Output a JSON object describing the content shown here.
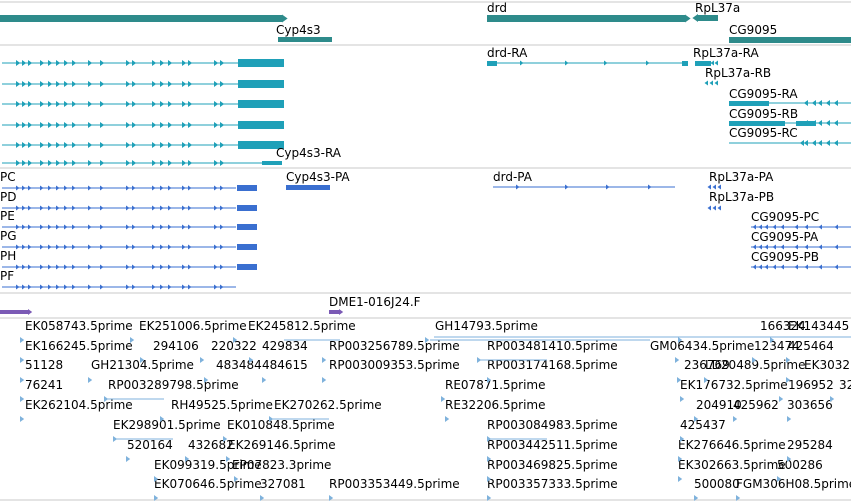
{
  "browser": {
    "colors": {
      "gene": "#2e8b8b",
      "transcript": "#1fa0b8",
      "protein": "#3a6fd0",
      "clone": "#7b5ab5",
      "est": "#7fb2dc",
      "separator": "#c8c8c8"
    },
    "genes": {
      "cyp4s3": "Cyp4s3",
      "drd": "drd",
      "rpl37a": "RpL37a",
      "cg9095": "CG9095"
    },
    "transcripts": {
      "drd_ra": "drd-RA",
      "rpl37a_ra": "RpL37a-RA",
      "rpl37a_rb": "RpL37a-RB",
      "cg9095_ra": "CG9095-RA",
      "cg9095_rb": "CG9095-RB",
      "cg9095_rc": "CG9095-RC",
      "cyp4s3_ra": "Cyp4s3-RA"
    },
    "proteins": {
      "pc": "PC",
      "pd": "PD",
      "pe": "PE",
      "pg": "PG",
      "ph": "PH",
      "pf": "PF",
      "cyp4s3_pa": "Cyp4s3-PA",
      "drd_pa": "drd-PA",
      "rpl37a_pa": "RpL37a-PA",
      "rpl37a_pb": "RpL37a-PB",
      "cg9095_pc": "CG9095-PC",
      "cg9095_pa": "CG9095-PA",
      "cg9095_pb": "CG9095-PB"
    },
    "clone": "DME1-016J24.F",
    "ests": [
      "EK058743.5prime",
      "EK251006.5prime",
      "EK245812.5prime",
      "GH14793.5prime",
      "166324",
      "EK143445",
      "EK166245.5prime",
      "294106",
      "220322",
      "429834",
      "RP003256789.5prime",
      "RP003481410.5prime",
      "GM06434.5prime",
      "123474",
      "425464",
      "51128",
      "GH21304.5prime",
      "483484",
      "484615",
      "RP003009353.5prime",
      "RP003174168.5prime",
      "236769",
      "LD20489.5prime",
      "EK3032",
      "76241",
      "RP003289798.5prime",
      "RE07871.5prime",
      "EK176732.5prime",
      "196952",
      "32",
      "EK262104.5prime",
      "RH49525.5prime",
      "EK270262.5prime",
      "RE32206.5prime",
      "204910",
      "425962",
      "303656",
      "EK298901.5prime",
      "EK010848.5prime",
      "RP003084983.5prime",
      "425437",
      "520164",
      "432682",
      "EK269146.5prime",
      "RP003442511.5prime",
      "EK276646.5prime",
      "295284",
      "EK099319.5prime",
      "EP07823.3prime",
      "RP003469825.5prime",
      "EK302663.5prime",
      "500286",
      "EK070646.5prime",
      "327081",
      "RP003353449.5prime",
      "RP003357333.5prime",
      "500080",
      "FGM306H08.5prime"
    ]
  }
}
